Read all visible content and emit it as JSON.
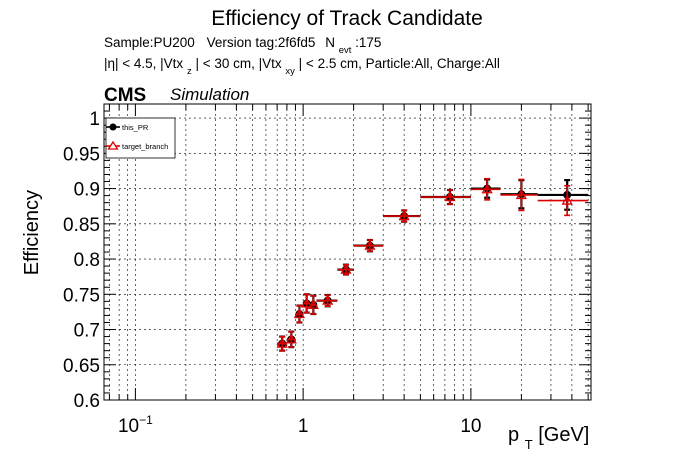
{
  "chart_data": {
    "type": "scatter",
    "title": "Efficiency of Track Candidate",
    "subtitle": {
      "line1": {
        "sample": "Sample:PU200",
        "version": "Version tag:2f6fd5",
        "n": "N",
        "n_sub": "evt",
        "n_val": ":175"
      },
      "line2": {
        "eta": "|η| < 4.5, |Vtx",
        "vz_sub": "z",
        "mid": "| < 30 cm, |Vtx",
        "vxy_sub": "xy",
        "rest": "| < 2.5 cm, Particle:All, Charge:All"
      }
    },
    "cms_label": "CMS",
    "cms_extra": "Simulation",
    "ylabel": "Efficiency",
    "xlabel": {
      "base": "p",
      "sub": "T",
      "unit": " [GeV]"
    },
    "xscale": "log",
    "xlim": [
      0.065,
      52
    ],
    "ylim": [
      0.6,
      1.02
    ],
    "grid": true,
    "legend_position": "top-left",
    "xticks": [
      {
        "base": "10",
        "exp": "−1",
        "value": 0.1
      },
      {
        "base": "1",
        "exp": "",
        "value": 1
      },
      {
        "base": "10",
        "exp": "",
        "value": 10
      }
    ],
    "yticks": [
      "0.6",
      "0.65",
      "0.7",
      "0.75",
      "0.8",
      "0.85",
      "0.9",
      "0.95",
      "1"
    ],
    "series": [
      {
        "name": "this_PR",
        "color": "#000000",
        "marker": "circle",
        "points": [
          {
            "x": 0.75,
            "xlo": 0.7,
            "xhi": 0.8,
            "y": 0.68,
            "err": 0.01
          },
          {
            "x": 0.85,
            "xlo": 0.8,
            "xhi": 0.9,
            "y": 0.686,
            "err": 0.011
          },
          {
            "x": 0.95,
            "xlo": 0.9,
            "xhi": 1.0,
            "y": 0.722,
            "err": 0.012
          },
          {
            "x": 1.05,
            "xlo": 1.0,
            "xhi": 1.1,
            "y": 0.737,
            "err": 0.013
          },
          {
            "x": 1.15,
            "xlo": 1.1,
            "xhi": 1.2,
            "y": 0.735,
            "err": 0.013
          },
          {
            "x": 1.4,
            "xlo": 1.2,
            "xhi": 1.6,
            "y": 0.741,
            "err": 0.008
          },
          {
            "x": 1.8,
            "xlo": 1.6,
            "xhi": 2.0,
            "y": 0.785,
            "err": 0.007
          },
          {
            "x": 2.5,
            "xlo": 2.0,
            "xhi": 3.0,
            "y": 0.819,
            "err": 0.008
          },
          {
            "x": 4.0,
            "xlo": 3.0,
            "xhi": 5.0,
            "y": 0.861,
            "err": 0.008
          },
          {
            "x": 7.5,
            "xlo": 5.0,
            "xhi": 10.0,
            "y": 0.888,
            "err": 0.01
          },
          {
            "x": 12.5,
            "xlo": 10.0,
            "xhi": 15.0,
            "y": 0.9,
            "err": 0.013
          },
          {
            "x": 20.0,
            "xlo": 15.0,
            "xhi": 25.0,
            "y": 0.892,
            "err": 0.02
          },
          {
            "x": 37.5,
            "xlo": 25.0,
            "xhi": 50.0,
            "y": 0.891,
            "err": 0.021
          }
        ]
      },
      {
        "name": "target_branch",
        "color": "#dd0000",
        "marker": "open-triangle",
        "points": [
          {
            "x": 0.75,
            "xlo": 0.7,
            "xhi": 0.8,
            "y": 0.68,
            "err": 0.01
          },
          {
            "x": 0.85,
            "xlo": 0.8,
            "xhi": 0.9,
            "y": 0.686,
            "err": 0.011
          },
          {
            "x": 0.95,
            "xlo": 0.9,
            "xhi": 1.0,
            "y": 0.722,
            "err": 0.012
          },
          {
            "x": 1.05,
            "xlo": 1.0,
            "xhi": 1.1,
            "y": 0.737,
            "err": 0.013
          },
          {
            "x": 1.15,
            "xlo": 1.1,
            "xhi": 1.2,
            "y": 0.735,
            "err": 0.013
          },
          {
            "x": 1.4,
            "xlo": 1.2,
            "xhi": 1.6,
            "y": 0.741,
            "err": 0.008
          },
          {
            "x": 1.8,
            "xlo": 1.6,
            "xhi": 2.0,
            "y": 0.785,
            "err": 0.007
          },
          {
            "x": 2.5,
            "xlo": 2.0,
            "xhi": 3.0,
            "y": 0.819,
            "err": 0.008
          },
          {
            "x": 4.0,
            "xlo": 3.0,
            "xhi": 5.0,
            "y": 0.861,
            "err": 0.008
          },
          {
            "x": 7.5,
            "xlo": 5.0,
            "xhi": 10.0,
            "y": 0.888,
            "err": 0.01
          },
          {
            "x": 12.5,
            "xlo": 10.0,
            "xhi": 15.0,
            "y": 0.899,
            "err": 0.015
          },
          {
            "x": 20.0,
            "xlo": 15.0,
            "xhi": 25.0,
            "y": 0.891,
            "err": 0.022
          },
          {
            "x": 37.5,
            "xlo": 25.0,
            "xhi": 50.0,
            "y": 0.883,
            "err": 0.021
          }
        ]
      }
    ]
  }
}
